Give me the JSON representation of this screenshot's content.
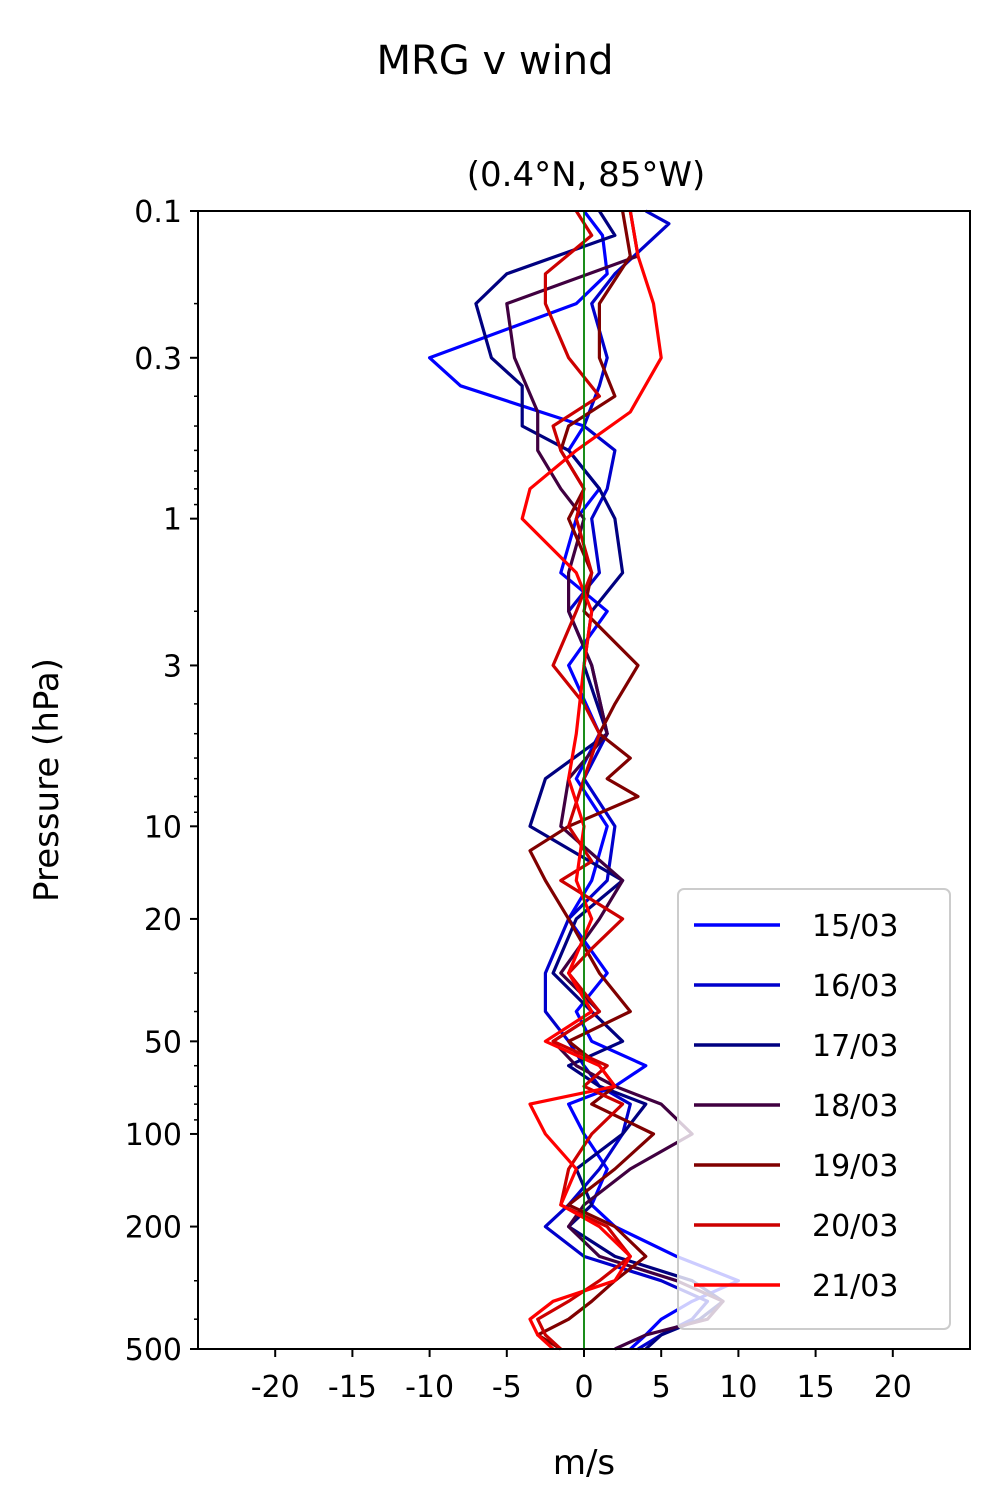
{
  "figure": {
    "suptitle": "MRG v wind"
  },
  "chart_data": {
    "type": "line",
    "title": "(0.4°N, 85°W)",
    "xlabel": "m/s",
    "ylabel": "Pressure (hPa)",
    "xlim": [
      -25,
      25
    ],
    "ylim": [
      500,
      0.1
    ],
    "yscale": "log",
    "x_ticks": [
      -20,
      -15,
      -10,
      -5,
      0,
      5,
      10,
      15,
      20
    ],
    "x_tick_labels": [
      "-20",
      "-15",
      "-10",
      "-5",
      "0",
      "5",
      "10",
      "15",
      "20"
    ],
    "y_ticks": [
      0.1,
      0.3,
      1,
      3,
      10,
      20,
      50,
      100,
      200,
      500
    ],
    "y_tick_labels": [
      "0.1",
      "0.3",
      "1",
      "3",
      "10",
      "20",
      "50",
      "100",
      "200",
      "500"
    ],
    "grid": false,
    "legend_position": "lower-right",
    "reference_line": {
      "x": 0,
      "color": "#008000"
    },
    "series": [
      {
        "name": "15/03",
        "color": "#0000ff",
        "p": [
          0.1,
          0.12,
          0.16,
          0.2,
          0.3,
          0.37,
          0.5,
          0.6,
          0.8,
          1.0,
          1.5,
          2.0,
          3.0,
          5.0,
          7.0,
          10.0,
          15.0,
          20.0,
          30.0,
          40.0,
          50.0,
          60.0,
          70.0,
          80.0,
          100.0,
          130.0,
          170.0,
          200.0,
          250.0,
          300.0,
          350.0,
          400.0,
          450.0,
          500.0
        ],
        "x": [
          0,
          1.2,
          1.5,
          -0.5,
          -10,
          -8,
          0,
          -1,
          1,
          -0.5,
          -1.5,
          1.5,
          -1,
          1,
          -0.5,
          1.5,
          0.5,
          -1,
          1.5,
          -0.5,
          0.5,
          4,
          2,
          -1,
          0,
          1.5,
          0.5,
          2,
          6,
          10,
          7,
          5,
          4,
          3
        ]
      },
      {
        "name": "16/03",
        "color": "#0000cc",
        "p": [
          0.1,
          0.11,
          0.16,
          0.2,
          0.3,
          0.37,
          0.5,
          0.6,
          0.8,
          1.0,
          1.5,
          2.0,
          3.0,
          5.0,
          7.0,
          10.0,
          15.0,
          20.0,
          30.0,
          40.0,
          50.0,
          60.0,
          70.0,
          80.0,
          100.0,
          130.0,
          170.0,
          200.0,
          250.0,
          300.0,
          350.0,
          400.0,
          450.0,
          500.0
        ],
        "x": [
          4,
          5.5,
          2,
          0.5,
          1.5,
          1,
          0,
          2,
          1.5,
          0.5,
          1,
          -1,
          0.5,
          1.5,
          0,
          2,
          1.5,
          -1,
          -2.5,
          -2.5,
          -1,
          0,
          1,
          3,
          2.5,
          1,
          -1,
          -2.5,
          0,
          5,
          8,
          7,
          5,
          3.5
        ]
      },
      {
        "name": "17/03",
        "color": "#000080",
        "p": [
          0.1,
          0.12,
          0.16,
          0.2,
          0.3,
          0.37,
          0.5,
          0.6,
          0.8,
          1.0,
          1.5,
          2.0,
          3.0,
          5.0,
          7.0,
          10.0,
          15.0,
          20.0,
          30.0,
          40.0,
          50.0,
          60.0,
          70.0,
          80.0,
          100.0,
          130.0,
          170.0,
          200.0,
          250.0,
          300.0,
          350.0,
          400.0,
          450.0,
          500.0
        ],
        "x": [
          1,
          2,
          -5,
          -7,
          -6,
          -4,
          -4,
          -1,
          1,
          2,
          2.5,
          0.5,
          0,
          1.5,
          -2.5,
          -3.5,
          2.5,
          -0.5,
          -2,
          0.5,
          2.5,
          -1,
          1,
          4,
          2.5,
          -0.5,
          0.5,
          -1,
          2,
          7,
          9,
          7.5,
          5,
          4
        ]
      },
      {
        "name": "18/03",
        "color": "#400040",
        "p": [
          0.1,
          0.14,
          0.2,
          0.3,
          0.45,
          0.6,
          0.8,
          1.0,
          1.5,
          2.0,
          3.0,
          5.0,
          7.0,
          10.0,
          15.0,
          20.0,
          30.0,
          40.0,
          50.0,
          60.0,
          70.0,
          80.0,
          100.0,
          130.0,
          170.0,
          200.0,
          250.0,
          300.0,
          350.0,
          400.0,
          450.0,
          500.0
        ],
        "x": [
          3,
          3.5,
          -5,
          -4.5,
          -3,
          -3,
          -1.5,
          0,
          -1,
          -1,
          0.5,
          1.5,
          -1,
          -1.5,
          2.5,
          1,
          -1.5,
          1,
          -2,
          -0.5,
          2,
          5,
          7,
          3,
          0,
          -1,
          1,
          6,
          9,
          8,
          4,
          2
        ]
      },
      {
        "name": "19/03",
        "color": "#800000",
        "p": [
          0.1,
          0.14,
          0.2,
          0.3,
          0.4,
          0.5,
          0.6,
          0.8,
          1.0,
          1.5,
          2.0,
          3.0,
          4.0,
          5.0,
          6.0,
          7.0,
          8.0,
          10.0,
          12.0,
          15.0,
          20.0,
          30.0,
          40.0,
          50.0,
          60.0,
          70.0,
          80.0,
          100.0,
          130.0,
          170.0,
          200.0,
          250.0,
          300.0,
          350.0,
          400.0,
          450.0,
          500.0
        ],
        "x": [
          2.5,
          3,
          1,
          1,
          2,
          -1,
          -1.5,
          0,
          -1,
          0.5,
          0,
          3.5,
          2,
          1,
          3,
          1.5,
          3.5,
          -1,
          -3.5,
          -2.5,
          -1,
          1,
          3,
          -1,
          1,
          2,
          0.5,
          4.5,
          2,
          -1,
          2,
          4,
          2,
          0.5,
          -1,
          -3,
          -1.5
        ]
      },
      {
        "name": "20/03",
        "color": "#cc0000",
        "p": [
          0.1,
          0.12,
          0.16,
          0.2,
          0.3,
          0.4,
          0.5,
          0.6,
          0.8,
          1.0,
          1.5,
          2.0,
          3.0,
          4.0,
          5.0,
          7.0,
          10.0,
          13.0,
          15.0,
          20.0,
          25.0,
          30.0,
          40.0,
          50.0,
          60.0,
          70.0,
          80.0,
          100.0,
          130.0,
          170.0,
          200.0,
          250.0,
          300.0,
          350.0,
          400.0,
          450.0,
          500.0
        ],
        "x": [
          -0.5,
          0.5,
          -2.5,
          -2.5,
          -1,
          1,
          -2,
          -1.5,
          0,
          -0.5,
          0.5,
          -0.5,
          -2,
          0,
          1,
          0,
          -1,
          0.5,
          -1.5,
          2.5,
          0.5,
          -1,
          1,
          -2,
          1.5,
          0,
          2.5,
          0.5,
          -1,
          -1.5,
          1.5,
          3,
          1,
          -1,
          -3,
          -2.5,
          -1.5
        ]
      },
      {
        "name": "21/03",
        "color": "#ff0000",
        "p": [
          0.1,
          0.14,
          0.2,
          0.3,
          0.45,
          0.6,
          0.8,
          1.0,
          1.5,
          2.0,
          3.0,
          5.0,
          7.0,
          10.0,
          15.0,
          20.0,
          30.0,
          40.0,
          50.0,
          60.0,
          70.0,
          80.0,
          100.0,
          130.0,
          170.0,
          200.0,
          250.0,
          300.0,
          350.0,
          400.0,
          450.0,
          500.0
        ],
        "x": [
          3,
          3.5,
          4.5,
          5,
          3,
          -0.5,
          -3.5,
          -4,
          -0.5,
          0.5,
          0,
          -0.5,
          -1,
          0,
          -0.5,
          0.5,
          -1,
          0.5,
          -2.5,
          1,
          2,
          -3.5,
          -2.5,
          -0.5,
          -1.5,
          1,
          3,
          2,
          -2,
          -3.5,
          -3,
          -2
        ]
      }
    ]
  }
}
